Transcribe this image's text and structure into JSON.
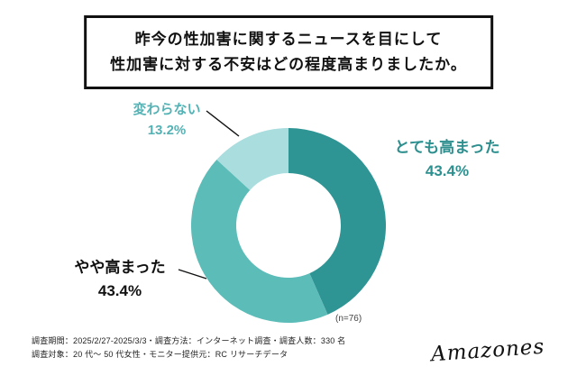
{
  "title": {
    "line1": "昨今の性加害に関するニュースを目にして",
    "line2": "性加害に対する不安はどの程度高まりましたか。"
  },
  "chart_data": {
    "type": "pie",
    "subtype": "donut",
    "start_angle_deg": 0,
    "direction": "clockwise",
    "unit": "%",
    "series": [
      {
        "key": "totemo-takamatta",
        "label": "とても高まった",
        "value": 43.4,
        "pct_label": "43.4%",
        "color": "#2E9494",
        "label_color": "#2E8F8F"
      },
      {
        "key": "yaya-takamatta",
        "label": "やや高まった",
        "value": 43.4,
        "pct_label": "43.4%",
        "color": "#5CBCB8",
        "label_color": "#111111"
      },
      {
        "key": "kawaranai",
        "label": "変わらない",
        "value": 13.2,
        "pct_label": "13.2%",
        "color": "#A9DDDE",
        "label_color": "#54B2B5"
      }
    ],
    "sample_note": "(n=76)",
    "legend_position": "callout-labels"
  },
  "footer": {
    "line1": "調査期間：2025/2/27-2025/3/3・調査方法：インターネット調査・調査人数：330 名",
    "line2": "調査対象：20 代〜 50 代女性・モニター提供元：RC リサーチデータ"
  },
  "logo": {
    "text": "Amazones"
  }
}
